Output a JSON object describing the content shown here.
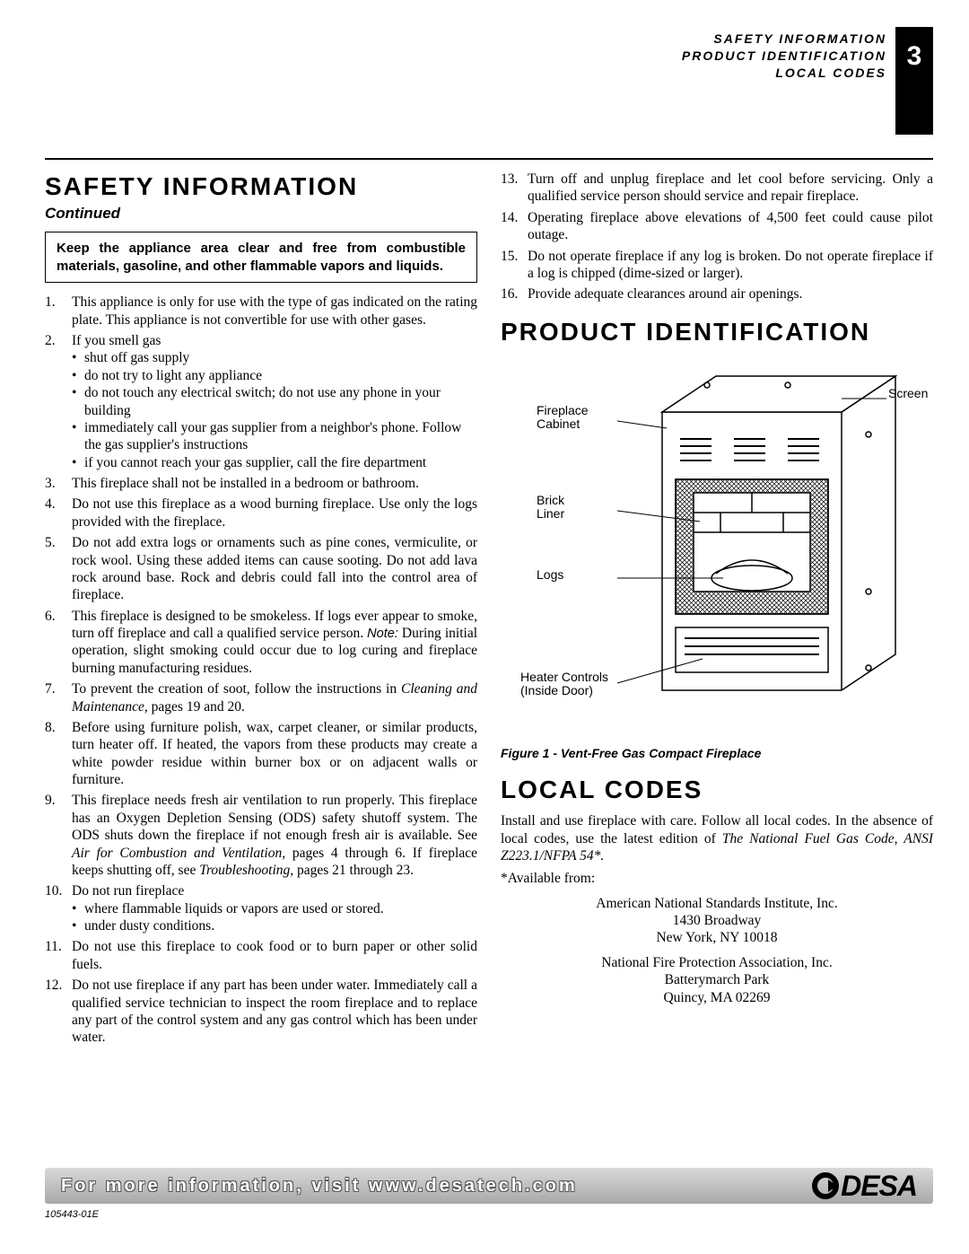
{
  "header": {
    "lines": [
      "SAFETY INFORMATION",
      "PRODUCT IDENTIFICATION",
      "LOCAL CODES"
    ],
    "page_number": "3"
  },
  "safety": {
    "title": "SAFETY INFORMATION",
    "continued": "Continued",
    "warning": "Keep the appliance area clear and free from combustible materials, gasoline, and other flammable vapors and liquids.",
    "items_left": [
      {
        "text": "This appliance is only for use with the type of gas indicated on the rating plate. This appliance is not convertible for use with other gases."
      },
      {
        "text": "If you smell gas",
        "sub": [
          "shut off gas supply",
          "do not try to light any appliance",
          "do not touch any electrical switch; do not use any phone in your building",
          "immediately call your gas supplier from a neighbor's phone. Follow the gas supplier's instructions",
          "if you cannot reach your gas supplier, call the fire department"
        ]
      },
      {
        "text": "This fireplace shall not be installed in a bedroom or bathroom."
      },
      {
        "text": "Do not use this fireplace as a wood burning fireplace. Use only the logs provided with the fireplace."
      },
      {
        "text": "Do not add extra logs or ornaments such as pine cones, vermiculite, or rock wool. Using these added items can cause sooting. Do not add lava rock around base. Rock and debris could fall into the control area of fireplace."
      },
      {
        "text": "This fireplace is designed to be smokeless. If logs ever appear to smoke, turn off fireplace and call a qualified service person.",
        "note": "During initial operation, slight smoking could occur due to log curing and fireplace burning manufacturing residues."
      },
      {
        "html": "To prevent the creation of soot, follow the instructions in <em class='bookref'>Cleaning and Maintenance,</em> pages 19 and 20."
      },
      {
        "text": "Before using furniture polish, wax, carpet cleaner, or similar products, turn heater off. If heated, the vapors from these products may create a white powder residue within burner box or on adjacent walls or furniture."
      },
      {
        "html": "This fireplace needs fresh air ventilation to run properly. This fireplace has an Oxygen Depletion Sensing (ODS) safety shutoff system. The ODS shuts down the fireplace if not enough fresh air is available. See <em class='bookref'>Air for Combustion and Ventilation,</em> pages 4 through 6. If fireplace keeps shutting off, see <em class='bookref'>Troubleshooting,</em> pages 21 through 23."
      },
      {
        "text": "Do not run fireplace",
        "sub": [
          "where flammable liquids or vapors are used or stored.",
          "under dusty conditions."
        ]
      },
      {
        "text": "Do not use this fireplace to cook food or to burn paper or other solid fuels."
      },
      {
        "text": "Do not use fireplace if any part has been under water. Immediately call a qualified service technician to inspect the room fireplace and to replace any part of the control system and any gas control which has been under water."
      }
    ],
    "items_right": [
      {
        "text": "Turn off and unplug fireplace and let cool before servicing. Only a qualified service person should service and repair fireplace."
      },
      {
        "text": "Operating fireplace above elevations of 4,500 feet could cause pilot outage."
      },
      {
        "text": "Do not operate fireplace if any log is broken. Do not operate fireplace if a log is chipped (dime-sized or larger)."
      },
      {
        "text": "Provide adequate clearances around air openings."
      }
    ]
  },
  "product_id": {
    "title": "PRODUCT IDENTIFICATION",
    "labels": {
      "cabinet": "Fireplace\nCabinet",
      "brick": "Brick\nLiner",
      "logs": "Logs",
      "controls": "Heater Controls\n(Inside Door)",
      "screen": "Screen"
    },
    "caption": "Figure 1 - Vent-Free Gas Compact Fireplace"
  },
  "local_codes": {
    "title": "LOCAL CODES",
    "intro": "Install and use fireplace with care. Follow all local codes. In the absence of local codes, use the latest edition of ",
    "ref": "The National Fuel Gas Code, ANSI Z223.1/NFPA 54*.",
    "available": "*Available from:",
    "addr1": [
      "American National Standards Institute, Inc.",
      "1430 Broadway",
      "New York, NY  10018"
    ],
    "addr2": [
      "National Fire Protection Association, Inc.",
      "Batterymarch Park",
      "Quincy, MA  02269"
    ]
  },
  "footer": {
    "text": "For more information, visit www.desatech.com",
    "brand": "DESA",
    "docnum": "105443-01E"
  }
}
